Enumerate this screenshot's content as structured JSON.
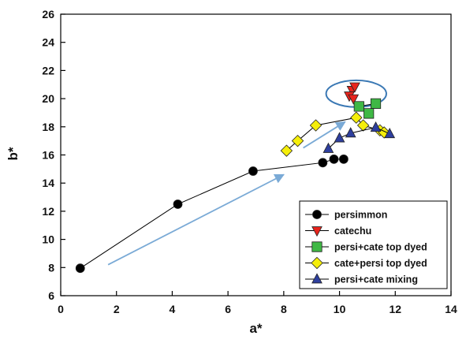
{
  "chart_data": {
    "type": "scatter",
    "xlabel": "a*",
    "ylabel": "b*",
    "xlim": [
      0,
      14
    ],
    "ylim": [
      6,
      26
    ],
    "xticks": [
      "0",
      "2",
      "4",
      "6",
      "8",
      "10",
      "12",
      "14"
    ],
    "yticks": [
      "6",
      "8",
      "10",
      "12",
      "14",
      "16",
      "18",
      "20",
      "22",
      "24",
      "26"
    ],
    "legend_position": "bottom-right",
    "series": [
      {
        "name": "persimmon",
        "marker": "circle",
        "color": "#000000",
        "connected": true,
        "points": [
          [
            0.7,
            7.95
          ],
          [
            4.2,
            12.5
          ],
          [
            6.9,
            14.85
          ],
          [
            9.4,
            15.45
          ],
          [
            9.8,
            15.7
          ],
          [
            10.15,
            15.7
          ]
        ]
      },
      {
        "name": "catechu",
        "marker": "triangle-down",
        "color": "#e8241c",
        "connected": false,
        "points": [
          [
            10.45,
            20.6
          ],
          [
            10.55,
            20.85
          ],
          [
            10.35,
            20.2
          ],
          [
            10.5,
            20.0
          ]
        ]
      },
      {
        "name": "persi+cate top dyed",
        "marker": "square",
        "color": "#3fb845",
        "connected": true,
        "points": [
          [
            10.7,
            19.45
          ],
          [
            11.3,
            19.65
          ],
          [
            11.05,
            18.95
          ]
        ]
      },
      {
        "name": "cate+persi top dyed",
        "marker": "diamond",
        "color": "#f5ee0a",
        "connected": true,
        "points": [
          [
            8.1,
            16.3
          ],
          [
            8.5,
            17.0
          ],
          [
            9.15,
            18.1
          ],
          [
            10.6,
            18.65
          ],
          [
            10.85,
            18.1
          ],
          [
            11.45,
            17.75
          ],
          [
            11.6,
            17.6
          ]
        ]
      },
      {
        "name": "persi+cate mixing",
        "marker": "triangle-up",
        "color": "#2e3f9e",
        "connected": true,
        "points": [
          [
            9.6,
            16.45
          ],
          [
            10.0,
            17.2
          ],
          [
            10.4,
            17.55
          ],
          [
            11.3,
            17.95
          ],
          [
            11.8,
            17.5
          ]
        ]
      }
    ],
    "annotations": {
      "ellipse": {
        "cx": 10.6,
        "cy": 20.35,
        "rx": 1.08,
        "ry": 0.95,
        "color": "#3a78b4"
      },
      "arrows": [
        {
          "from": [
            1.7,
            8.2
          ],
          "to": [
            8.0,
            14.6
          ],
          "color": "#7aaad6"
        },
        {
          "from": [
            8.7,
            16.5
          ],
          "to": [
            10.2,
            18.35
          ],
          "color": "#7aaad6"
        }
      ]
    }
  }
}
